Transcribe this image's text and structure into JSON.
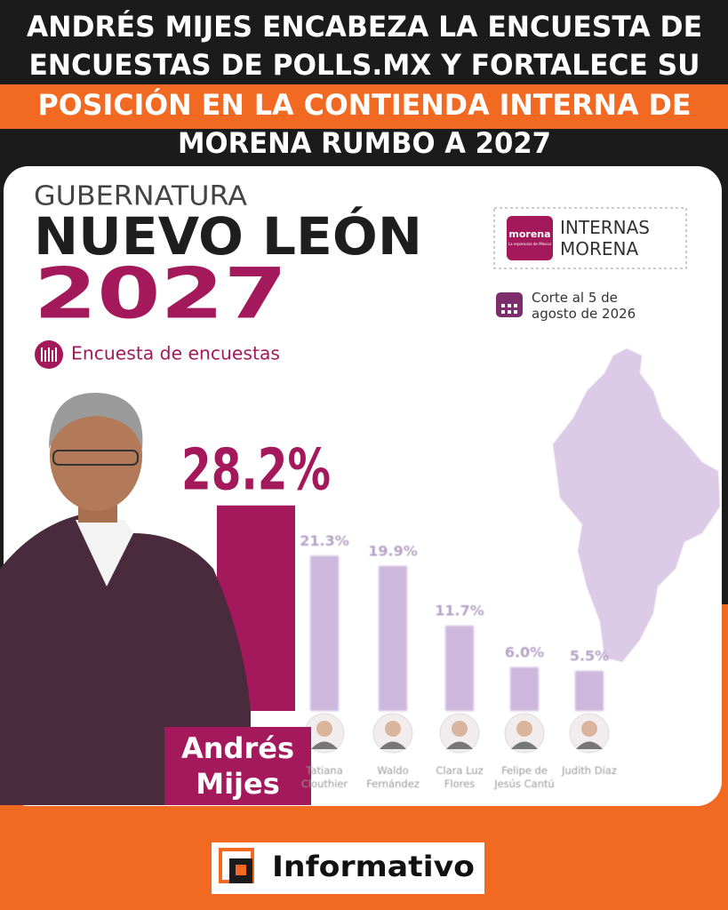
{
  "headline": {
    "lines": [
      "ANDRÉS MIJES ENCABEZA LA ENCUESTA DE",
      "ENCUESTAS DE POLLS.MX Y FORTALECE SU",
      "POSICIÓN EN LA CONTIENDA INTERNA DE",
      "MORENA RUMBO A 2027"
    ]
  },
  "graphic": {
    "kicker": "GUBERNATURA",
    "state": "NUEVO LEÓN",
    "year": "2027",
    "source": "Encuesta de encuestas",
    "badge": {
      "logo": "morena",
      "tagline": "La esperanza de México",
      "label": "INTERNAS MORENA"
    },
    "date": "Corte al 5 de agosto de 2026"
  },
  "chart_data": {
    "type": "bar",
    "categories": [
      "Andrés Mijes",
      "Tatiana Clouthier",
      "Waldo Fernández",
      "Clara Luz Flores",
      "Felipe de Jesús Cantú",
      "Judith Díaz"
    ],
    "values": [
      28.2,
      21.3,
      19.9,
      11.7,
      6.0,
      5.5
    ],
    "value_labels": [
      "28.2%",
      "21.3%",
      "19.9%",
      "11.7%",
      "6.0%",
      "5.5%"
    ],
    "colors": [
      "#a3195b",
      "#cdb7dd",
      "#cdb7dd",
      "#cdb7dd",
      "#cdb7dd",
      "#cdb7dd"
    ],
    "ylim": [
      0,
      30
    ]
  },
  "footer": {
    "brand": "Informativo"
  }
}
